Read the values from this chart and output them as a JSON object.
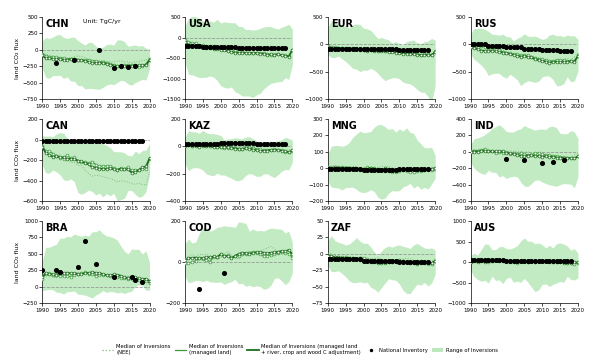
{
  "panels": [
    {
      "label": "CHN",
      "ylim": [
        -750,
        500
      ],
      "yticks": [
        -750,
        -500,
        -250,
        0,
        250,
        500
      ],
      "row": 0,
      "col": 0,
      "unit_text": true
    },
    {
      "label": "USA",
      "ylim": [
        -1500,
        500
      ],
      "yticks": [
        -1500,
        -1000,
        -500,
        0,
        500
      ],
      "row": 0,
      "col": 1
    },
    {
      "label": "EUR",
      "ylim": [
        -1000,
        500
      ],
      "yticks": [
        -1000,
        -500,
        0,
        500
      ],
      "row": 0,
      "col": 2
    },
    {
      "label": "RUS",
      "ylim": [
        -1000,
        500
      ],
      "yticks": [
        -1000,
        -500,
        0,
        500
      ],
      "row": 0,
      "col": 3
    },
    {
      "label": "CAN",
      "ylim": [
        -600,
        200
      ],
      "yticks": [
        -600,
        -400,
        -200,
        0,
        200
      ],
      "row": 1,
      "col": 0
    },
    {
      "label": "KAZ",
      "ylim": [
        -400,
        200
      ],
      "yticks": [
        -400,
        -200,
        0,
        200
      ],
      "row": 1,
      "col": 1
    },
    {
      "label": "MNG",
      "ylim": [
        -200,
        300
      ],
      "yticks": [
        -200,
        -100,
        0,
        100,
        200,
        300
      ],
      "row": 1,
      "col": 2
    },
    {
      "label": "IND",
      "ylim": [
        -600,
        400
      ],
      "yticks": [
        -600,
        -400,
        -200,
        0,
        200,
        400
      ],
      "row": 1,
      "col": 3
    },
    {
      "label": "BRA",
      "ylim": [
        -250,
        1000
      ],
      "yticks": [
        -250,
        0,
        250,
        500,
        750,
        1000
      ],
      "row": 2,
      "col": 0
    },
    {
      "label": "COD",
      "ylim": [
        -200,
        200
      ],
      "yticks": [
        -200,
        0,
        200
      ],
      "row": 2,
      "col": 1
    },
    {
      "label": "ZAF",
      "ylim": [
        -75,
        50
      ],
      "yticks": [
        -75,
        -50,
        -25,
        0,
        25,
        50
      ],
      "row": 2,
      "col": 2
    },
    {
      "label": "AUS",
      "ylim": [
        -1000,
        1000
      ],
      "yticks": [
        -1000,
        -500,
        0,
        500,
        1000
      ],
      "row": 2,
      "col": 3
    }
  ],
  "green_fill": "#b3e6b3",
  "green_fill_alpha": 0.7,
  "green_nee": "#90c890",
  "green_managed": "#3a9a3a",
  "green_adjusted": "#1a6a1a",
  "ylabel": "land CO₂ flux",
  "nrows": 3,
  "ncols": 4
}
